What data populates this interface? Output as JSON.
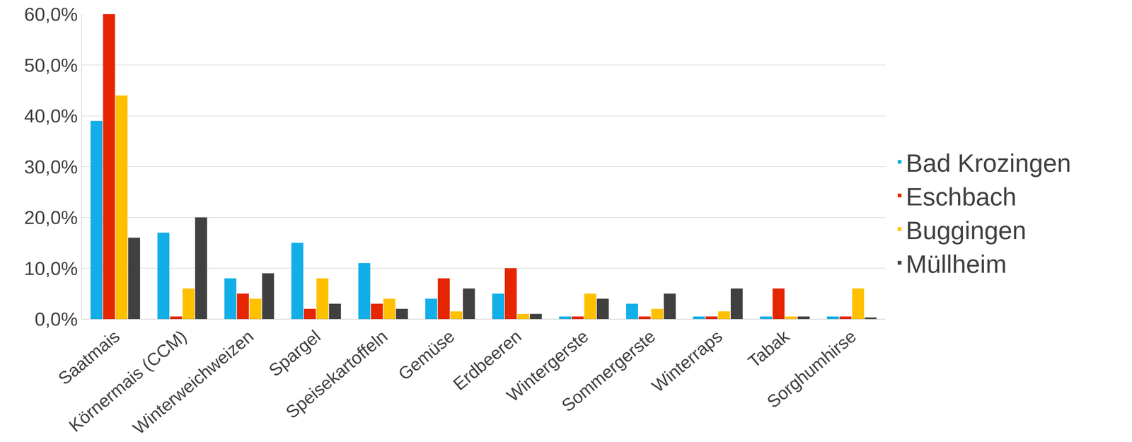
{
  "chart_data": {
    "type": "bar",
    "categories": [
      "Saatmais",
      "Körnermais (CCM)",
      "Winterweichweizen",
      "Spargel",
      "Speisekartoffeln",
      "Gemüse",
      "Erdbeeren",
      "Wintergerste",
      "Sommergerste",
      "Winterraps",
      "Tabak",
      "Sorghumhirse"
    ],
    "series": [
      {
        "name": "Bad Krozingen",
        "color": "#12aee8",
        "values": [
          39,
          17,
          8,
          15,
          11,
          4,
          5,
          0.5,
          3,
          0.5,
          0.5,
          0.5
        ]
      },
      {
        "name": "Eschbach",
        "color": "#e52600",
        "values": [
          60,
          0.5,
          5,
          2,
          3,
          8,
          10,
          0.5,
          0.5,
          0.5,
          6,
          0.5
        ]
      },
      {
        "name": "Buggingen",
        "color": "#ffc000",
        "values": [
          44,
          6,
          4,
          8,
          4,
          1.5,
          1,
          5,
          2,
          1.5,
          0.5,
          6
        ]
      },
      {
        "name": "Müllheim",
        "color": "#404040",
        "values": [
          16,
          20,
          9,
          3,
          2,
          6,
          1,
          4,
          5,
          6,
          0.5,
          0.3
        ]
      }
    ],
    "ylim": [
      0,
      60
    ],
    "yticks": [
      {
        "value": 0,
        "label": "0,0%"
      },
      {
        "value": 10,
        "label": "10,0%"
      },
      {
        "value": 20,
        "label": "20,0%"
      },
      {
        "value": 30,
        "label": "30,0%"
      },
      {
        "value": 40,
        "label": "40,0%"
      },
      {
        "value": 50,
        "label": "50,0%"
      },
      {
        "value": 60,
        "label": "60,0%"
      }
    ],
    "grid": true,
    "legend": "right"
  }
}
